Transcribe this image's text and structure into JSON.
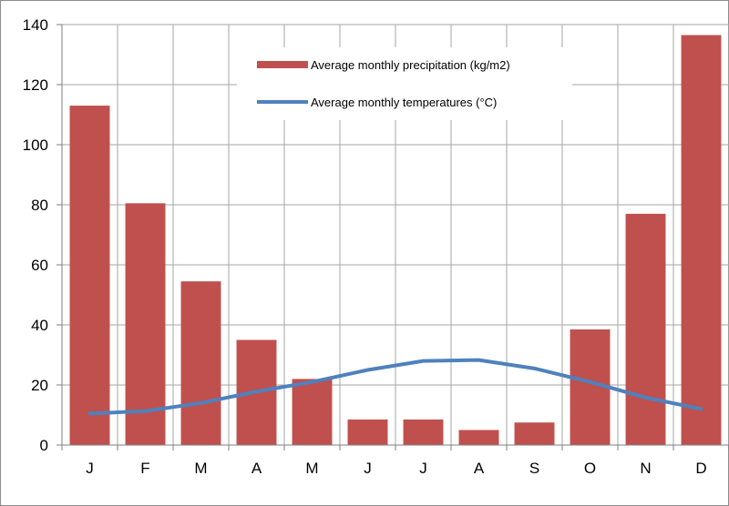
{
  "chart_data": {
    "type": "bar",
    "categories": [
      "J",
      "F",
      "M",
      "A",
      "M",
      "J",
      "J",
      "A",
      "S",
      "O",
      "N",
      "D"
    ],
    "series": [
      {
        "name": "Average monthly precipitation (kg/m2)",
        "type": "bar",
        "color": "#c0504d",
        "values": [
          113,
          80.5,
          54.5,
          35,
          22,
          8.5,
          8.5,
          5,
          7.5,
          38.5,
          77,
          136.5
        ]
      },
      {
        "name": "Average monthly temperatures (°C)",
        "type": "line",
        "color": "#4f81bd",
        "values": [
          10.5,
          11.3,
          14,
          17.8,
          21,
          25,
          28,
          28.3,
          25.5,
          21,
          15.8,
          12
        ]
      }
    ],
    "ylim": [
      0,
      140
    ],
    "y_ticks": [
      0,
      20,
      40,
      60,
      80,
      100,
      120,
      140
    ],
    "y_tick_labels": [
      "0",
      "20",
      "40",
      "60",
      "80",
      "100",
      "120",
      "140"
    ],
    "grid": true,
    "legend_position": "top-center",
    "title": "",
    "xlabel": "",
    "ylabel": ""
  }
}
